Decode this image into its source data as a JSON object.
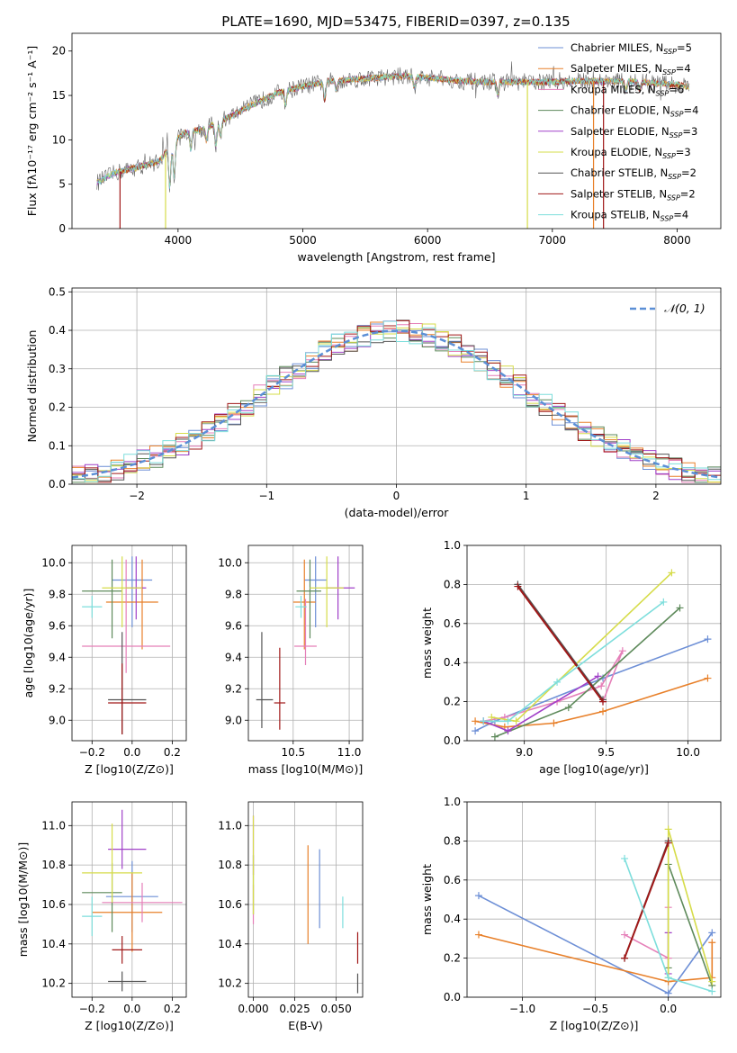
{
  "figure_title": "PLATE=1690, MJD=53475, FIBERID=0397, z=0.135",
  "colors": {
    "chab_miles": "#6d8fd6",
    "salp_miles": "#e8802a",
    "krou_miles": "#e57fb8",
    "chab_elodie": "#5e8a5b",
    "salp_elodie": "#a040c8",
    "krou_elodie": "#d6dc4a",
    "chab_stelib": "#555555",
    "salp_stelib": "#a01818",
    "krou_stelib": "#7ddedc",
    "normal": "#5b8fd6"
  },
  "chart_data": [
    {
      "id": "spectrum",
      "type": "line",
      "xlabel": "wavelength [Angstrom, rest frame]",
      "ylabel": "Flux [fλ10⁻¹⁷ erg cm⁻² s⁻¹ A⁻¹]",
      "xlim": [
        3150,
        8350
      ],
      "ylim": [
        0,
        22
      ],
      "xticks": [
        4000,
        5000,
        6000,
        7000,
        8000
      ],
      "yticks": [
        0,
        5,
        10,
        15,
        20
      ],
      "legend_position": "right",
      "legend": [
        {
          "key": "chab_miles",
          "label": "Chabrier MILES, N_SSP=5"
        },
        {
          "key": "salp_miles",
          "label": "Salpeter MILES, N_SSP=4"
        },
        {
          "key": "krou_miles",
          "label": "Kroupa MILES, N_SSP=6"
        },
        {
          "key": "chab_elodie",
          "label": "Chabrier ELODIE, N_SSP=4"
        },
        {
          "key": "salp_elodie",
          "label": "Salpeter ELODIE, N_SSP=3"
        },
        {
          "key": "krou_elodie",
          "label": "Kroupa ELODIE, N_SSP=3"
        },
        {
          "key": "chab_stelib",
          "label": "Chabrier STELIB, N_SSP=2"
        },
        {
          "key": "salp_stelib",
          "label": "Salpeter STELIB, N_SSP=2"
        },
        {
          "key": "krou_stelib",
          "label": "Kroupa STELIB, N_SSP=4"
        }
      ],
      "continuum": [
        [
          3350,
          5.2
        ],
        [
          3500,
          6.3
        ],
        [
          3700,
          7.0
        ],
        [
          3850,
          7.6
        ],
        [
          3950,
          9.5
        ],
        [
          4050,
          10.8
        ],
        [
          4200,
          11.2
        ],
        [
          4400,
          12.5
        ],
        [
          4600,
          14.0
        ],
        [
          4800,
          15.3
        ],
        [
          5000,
          16.0
        ],
        [
          5200,
          16.6
        ],
        [
          5500,
          16.9
        ],
        [
          5800,
          17.2
        ],
        [
          6000,
          17.0
        ],
        [
          6300,
          16.6
        ],
        [
          6600,
          16.5
        ],
        [
          6900,
          16.5
        ],
        [
          7200,
          16.6
        ],
        [
          7600,
          16.6
        ],
        [
          8000,
          16.2
        ],
        [
          8100,
          16.0
        ]
      ],
      "absorption_lines": [
        [
          3934,
          4.5
        ],
        [
          3969,
          4.0
        ],
        [
          4102,
          2.0
        ],
        [
          4227,
          1.5
        ],
        [
          4304,
          2.5
        ],
        [
          4340,
          1.8
        ],
        [
          4861,
          1.5
        ],
        [
          5175,
          2.0
        ],
        [
          5270,
          1.0
        ],
        [
          5894,
          1.2
        ],
        [
          6563,
          1.5
        ],
        [
          7590,
          1.0
        ],
        [
          7700,
          0.8
        ]
      ],
      "drop_lines": [
        [
          3535,
          "salp_stelib"
        ],
        [
          3900,
          "krou_elodie"
        ],
        [
          6800,
          "krou_elodie"
        ],
        [
          7330,
          "salp_miles"
        ],
        [
          7410,
          "salp_stelib"
        ]
      ]
    },
    {
      "id": "residuals",
      "type": "step",
      "xlabel": "(data-model)/error",
      "ylabel": "Normed distribution",
      "xlim": [
        -2.5,
        2.5
      ],
      "ylim": [
        0,
        0.51
      ],
      "xticks": [
        -2,
        -1,
        0,
        1,
        2
      ],
      "yticks": [
        0.0,
        0.1,
        0.2,
        0.3,
        0.4,
        0.5
      ],
      "legend": [
        {
          "key": "normal",
          "label": "𝒩(0, 1)"
        }
      ],
      "legend_position": "top-right",
      "bin_width": 0.1
    },
    {
      "id": "age_vs_Z",
      "type": "errorbar",
      "xlabel": "Z [log10(Z/Z⊙)]",
      "ylabel": "age  [log10(age/yr)]",
      "xlim": [
        -0.3,
        0.27
      ],
      "ylim": [
        8.87,
        10.11
      ],
      "xticks": [
        -0.2,
        0.0,
        0.2
      ],
      "yticks": [
        9.0,
        9.2,
        9.4,
        9.6,
        9.8,
        10.0
      ],
      "points": [
        {
          "key": "chab_miles",
          "x": 0.0,
          "xerr": [
            0.1,
            0.1
          ],
          "y": 9.89,
          "yerr": [
            0.3,
            0.15
          ]
        },
        {
          "key": "salp_miles",
          "x": 0.05,
          "xerr": [
            0.18,
            0.08
          ],
          "y": 9.75,
          "yerr": [
            0.3,
            0.27
          ]
        },
        {
          "key": "krou_miles",
          "x": -0.03,
          "xerr": [
            0.22,
            0.22
          ],
          "y": 9.47,
          "yerr": [
            0.17,
            0.55
          ]
        },
        {
          "key": "chab_elodie",
          "x": -0.1,
          "xerr": [
            0.15,
            0.05
          ],
          "y": 9.82,
          "yerr": [
            0.3,
            0.2
          ]
        },
        {
          "key": "salp_elodie",
          "x": 0.02,
          "xerr": [
            0.05,
            0.05
          ],
          "y": 9.84,
          "yerr": [
            0.2,
            0.2
          ]
        },
        {
          "key": "krou_elodie",
          "x": -0.05,
          "xerr": [
            0.1,
            0.1
          ],
          "y": 9.84,
          "yerr": [
            0.25,
            0.2
          ]
        },
        {
          "key": "chab_stelib",
          "x": -0.05,
          "xerr": [
            0.07,
            0.12
          ],
          "y": 9.13,
          "yerr": [
            0.22,
            0.43
          ]
        },
        {
          "key": "salp_stelib",
          "x": -0.05,
          "xerr": [
            0.07,
            0.12
          ],
          "y": 9.11,
          "yerr": [
            0.2,
            0.25
          ]
        },
        {
          "key": "krou_stelib",
          "x": -0.2,
          "xerr": [
            0.05,
            0.05
          ],
          "y": 9.72,
          "yerr": [
            0.07,
            0.07
          ]
        }
      ]
    },
    {
      "id": "age_vs_mass",
      "type": "errorbar",
      "xlabel": "mass [log10(M/M⊙)]",
      "ylabel": "",
      "xlim": [
        10.1,
        11.12
      ],
      "ylim": [
        8.87,
        10.11
      ],
      "xticks": [
        10.5,
        11.0
      ],
      "yticks": [
        9.0,
        9.2,
        9.4,
        9.6,
        9.8,
        10.0
      ],
      "points": [
        {
          "key": "chab_miles",
          "x": 10.7,
          "xerr": [
            0.1,
            0.1
          ],
          "y": 9.89,
          "yerr": [
            0.3,
            0.15
          ]
        },
        {
          "key": "salp_miles",
          "x": 10.6,
          "xerr": [
            0.1,
            0.1
          ],
          "y": 9.75,
          "yerr": [
            0.3,
            0.27
          ]
        },
        {
          "key": "krou_miles",
          "x": 10.61,
          "xerr": [
            0.1,
            0.1
          ],
          "y": 9.47,
          "yerr": [
            0.12,
            0.3
          ]
        },
        {
          "key": "chab_elodie",
          "x": 10.65,
          "xerr": [
            0.12,
            0.1
          ],
          "y": 9.82,
          "yerr": [
            0.3,
            0.2
          ]
        },
        {
          "key": "salp_elodie",
          "x": 10.9,
          "xerr": [
            0.1,
            0.15
          ],
          "y": 9.84,
          "yerr": [
            0.2,
            0.2
          ]
        },
        {
          "key": "krou_elodie",
          "x": 10.8,
          "xerr": [
            0.15,
            0.15
          ],
          "y": 9.84,
          "yerr": [
            0.25,
            0.2
          ]
        },
        {
          "key": "chab_stelib",
          "x": 10.22,
          "xerr": [
            0.05,
            0.1
          ],
          "y": 9.13,
          "yerr": [
            0.18,
            0.43
          ]
        },
        {
          "key": "salp_stelib",
          "x": 10.38,
          "xerr": [
            0.05,
            0.05
          ],
          "y": 9.11,
          "yerr": [
            0.17,
            0.35
          ]
        },
        {
          "key": "krou_stelib",
          "x": 10.57,
          "xerr": [
            0.05,
            0.05
          ],
          "y": 9.72,
          "yerr": [
            0.07,
            0.07
          ]
        }
      ]
    },
    {
      "id": "weight_vs_age",
      "type": "line",
      "xlabel": "age  [log10(age/yr)]",
      "ylabel": "mass weight",
      "xlim": [
        8.65,
        10.2
      ],
      "ylim": [
        0,
        1.0
      ],
      "xticks": [
        9.0,
        9.5,
        10.0
      ],
      "yticks": [
        0.0,
        0.2,
        0.4,
        0.6,
        0.8,
        1.0
      ],
      "series": [
        {
          "key": "chab_miles",
          "x": [
            8.7,
            8.82,
            9.48,
            10.12
          ],
          "y": [
            0.05,
            0.1,
            0.32,
            0.52
          ]
        },
        {
          "key": "salp_miles",
          "x": [
            8.7,
            8.88,
            9.18,
            9.48,
            10.12
          ],
          "y": [
            0.1,
            0.07,
            0.09,
            0.15,
            0.32
          ]
        },
        {
          "key": "krou_miles",
          "x": [
            8.75,
            8.88,
            9.2,
            9.47,
            9.6,
            9.48
          ],
          "y": [
            0.1,
            0.12,
            0.2,
            0.28,
            0.46,
            0.2
          ]
        },
        {
          "key": "chab_elodie",
          "x": [
            8.82,
            9.27,
            9.95
          ],
          "y": [
            0.02,
            0.17,
            0.68
          ]
        },
        {
          "key": "salp_elodie",
          "x": [
            8.75,
            8.9,
            9.45
          ],
          "y": [
            0.1,
            0.05,
            0.33
          ]
        },
        {
          "key": "krou_elodie",
          "x": [
            8.8,
            8.95,
            9.9
          ],
          "y": [
            0.12,
            0.1,
            0.86
          ]
        },
        {
          "key": "chab_stelib",
          "x": [
            8.96,
            9.48
          ],
          "y": [
            0.8,
            0.21
          ]
        },
        {
          "key": "salp_stelib",
          "x": [
            8.96,
            9.48
          ],
          "y": [
            0.79,
            0.2
          ]
        },
        {
          "key": "krou_stelib",
          "x": [
            8.75,
            8.9,
            9.2,
            9.85
          ],
          "y": [
            0.1,
            0.1,
            0.3,
            0.71
          ]
        }
      ]
    },
    {
      "id": "mass_vs_Z",
      "type": "errorbar",
      "xlabel": "Z [log10(Z/Z⊙)]",
      "ylabel": "mass [log10(M/M⊙)]",
      "xlim": [
        -0.3,
        0.27
      ],
      "ylim": [
        10.13,
        11.12
      ],
      "xticks": [
        -0.2,
        0.0,
        0.2
      ],
      "yticks": [
        10.2,
        10.4,
        10.6,
        10.8,
        11.0
      ],
      "points": [
        {
          "key": "chab_miles",
          "x": 0.0,
          "xerr": [
            0.13,
            0.13
          ],
          "y": 10.64,
          "yerr": [
            0.18,
            0.18
          ]
        },
        {
          "key": "salp_miles",
          "x": 0.0,
          "xerr": [
            0.2,
            0.15
          ],
          "y": 10.56,
          "yerr": [
            0.2,
            0.2
          ]
        },
        {
          "key": "krou_miles",
          "x": 0.05,
          "xerr": [
            0.2,
            0.2
          ],
          "y": 10.61,
          "yerr": [
            0.1,
            0.1
          ]
        },
        {
          "key": "chab_elodie",
          "x": -0.1,
          "xerr": [
            0.15,
            0.05
          ],
          "y": 10.66,
          "yerr": [
            0.2,
            0.15
          ]
        },
        {
          "key": "salp_elodie",
          "x": -0.05,
          "xerr": [
            0.07,
            0.12
          ],
          "y": 10.88,
          "yerr": [
            0.1,
            0.2
          ]
        },
        {
          "key": "krou_elodie",
          "x": -0.1,
          "xerr": [
            0.15,
            0.15
          ],
          "y": 10.76,
          "yerr": [
            0.15,
            0.25
          ]
        },
        {
          "key": "chab_stelib",
          "x": -0.05,
          "xerr": [
            0.07,
            0.12
          ],
          "y": 10.21,
          "yerr": [
            0.05,
            0.05
          ]
        },
        {
          "key": "salp_stelib",
          "x": -0.05,
          "xerr": [
            0.05,
            0.1
          ],
          "y": 10.37,
          "yerr": [
            0.07,
            0.07
          ]
        },
        {
          "key": "krou_stelib",
          "x": -0.2,
          "xerr": [
            0.05,
            0.05
          ],
          "y": 10.54,
          "yerr": [
            0.1,
            0.1
          ]
        }
      ]
    },
    {
      "id": "mass_vs_ebv",
      "type": "errorbar",
      "xlabel": "E(B-V)",
      "ylabel": "",
      "xlim": [
        -0.003,
        0.066
      ],
      "ylim": [
        10.13,
        11.12
      ],
      "xticks": [
        0.0,
        0.025,
        0.05
      ],
      "xticklabels": [
        "0.000",
        "0.025",
        "0.050"
      ],
      "yticks": [
        10.2,
        10.4,
        10.6,
        10.8,
        11.0
      ],
      "points": [
        {
          "key": "chab_miles",
          "x": 0.04,
          "xerr": [
            0,
            0
          ],
          "y": 10.68,
          "yerr": [
            0.2,
            0.2
          ]
        },
        {
          "key": "salp_miles",
          "x": 0.033,
          "xerr": [
            0,
            0
          ],
          "y": 10.65,
          "yerr": [
            0.25,
            0.25
          ]
        },
        {
          "key": "krou_miles",
          "x": 0.0,
          "xerr": [
            0,
            0
          ],
          "y": 10.6,
          "yerr": [
            0.1,
            0.1
          ]
        },
        {
          "key": "chab_elodie",
          "x": 0.0,
          "xerr": [
            0,
            0
          ],
          "y": 10.7,
          "yerr": [
            0.15,
            0.15
          ]
        },
        {
          "key": "salp_elodie",
          "x": 0.0,
          "xerr": [
            0,
            0
          ],
          "y": 10.9,
          "yerr": [
            0.15,
            0.15
          ]
        },
        {
          "key": "krou_elodie",
          "x": 0.0,
          "xerr": [
            0,
            0
          ],
          "y": 10.8,
          "yerr": [
            0.25,
            0.25
          ]
        },
        {
          "key": "chab_stelib",
          "x": 0.063,
          "xerr": [
            0,
            0
          ],
          "y": 10.2,
          "yerr": [
            0.05,
            0.05
          ]
        },
        {
          "key": "salp_stelib",
          "x": 0.063,
          "xerr": [
            0,
            0
          ],
          "y": 10.38,
          "yerr": [
            0.08,
            0.08
          ]
        },
        {
          "key": "krou_stelib",
          "x": 0.054,
          "xerr": [
            0,
            0
          ],
          "y": 10.56,
          "yerr": [
            0.08,
            0.08
          ]
        }
      ]
    },
    {
      "id": "weight_vs_Z",
      "type": "line",
      "xlabel": "Z [log10(Z/Z⊙)]",
      "ylabel": "mass weight",
      "xlim": [
        -1.38,
        0.36
      ],
      "ylim": [
        0,
        1.0
      ],
      "xticks": [
        -1.0,
        -0.5,
        0.0
      ],
      "yticks": [
        0.0,
        0.2,
        0.4,
        0.6,
        0.8,
        1.0
      ],
      "series": [
        {
          "key": "chab_miles",
          "x": [
            -1.3,
            0.0,
            0.3
          ],
          "y": [
            0.52,
            0.02,
            0.33
          ]
        },
        {
          "key": "salp_miles",
          "x": [
            -1.3,
            0.0,
            0.3,
            0.3
          ],
          "y": [
            0.32,
            0.08,
            0.1,
            0.28
          ]
        },
        {
          "key": "krou_miles",
          "x": [
            -0.3,
            0.0,
            0.0
          ],
          "y": [
            0.32,
            0.2,
            0.46
          ]
        },
        {
          "key": "chab_elodie",
          "x": [
            0.0,
            0.0,
            0.3
          ],
          "y": [
            0.15,
            0.68,
            0.06
          ]
        },
        {
          "key": "salp_elodie",
          "x": [
            0.0,
            0.0
          ],
          "y": [
            0.33,
            0.12
          ]
        },
        {
          "key": "krou_elodie",
          "x": [
            0.0,
            0.0,
            0.3
          ],
          "y": [
            0.1,
            0.86,
            0.08
          ]
        },
        {
          "key": "chab_stelib",
          "x": [
            -0.3,
            0.0
          ],
          "y": [
            0.2,
            0.8
          ]
        },
        {
          "key": "salp_stelib",
          "x": [
            -0.3,
            0.0
          ],
          "y": [
            0.2,
            0.79
          ]
        },
        {
          "key": "krou_stelib",
          "x": [
            -0.3,
            0.0,
            0.3
          ],
          "y": [
            0.71,
            0.1,
            0.03
          ]
        }
      ]
    }
  ]
}
